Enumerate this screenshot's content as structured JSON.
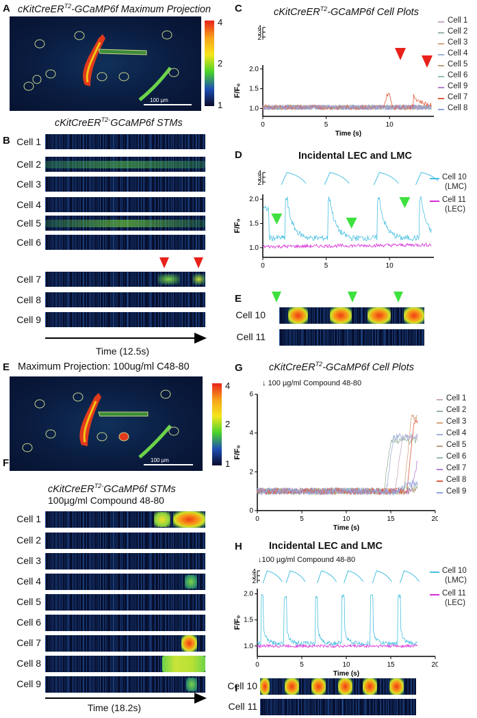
{
  "panelA": {
    "letter": "A",
    "title_pre": "cKitCreER",
    "title_sup": "T2",
    "title_post": "-GCaMP6f Maximum Projection",
    "scale": "100 µm",
    "cbar_ticks": [
      "4",
      "2",
      "1"
    ],
    "rois": [
      "1",
      "2",
      "3",
      "4",
      "5",
      "6",
      "7",
      "8",
      "9",
      "10",
      "11"
    ]
  },
  "panelB": {
    "letter": "B",
    "title_pre": "cKitCreER",
    "title_sup": "T2-",
    "title_post": "GCaMP6f STMs",
    "cells": [
      "Cell 1",
      "Cell 2",
      "Cell 3",
      "Cell 4",
      "Cell 5",
      "Cell 6",
      "Cell 7",
      "Cell 8",
      "Cell 9"
    ],
    "time": "Time (12.5s)"
  },
  "panelC": {
    "letter": "C",
    "title_pre": "cKitCreER",
    "title_sup": "T2",
    "title_post": "-GCaMP6f Cell Plots",
    "chart_data": {
      "type": "line",
      "xlabel": "Time (s)",
      "ylabel": "F/F0",
      "xlim": [
        0,
        13.5
      ],
      "ylim": [
        0.8,
        2.1
      ],
      "xticks": [
        "0",
        "5",
        "10"
      ],
      "yticks": [
        "1.0",
        "1.5",
        "2.0"
      ],
      "stack_ticks": [
        "4",
        "3",
        "2"
      ],
      "legend": [
        "Cell 1",
        "Cell 2",
        "Cell 3",
        "Cell 4",
        "Cell 5",
        "Cell 6",
        "Cell 9",
        "Cell 7",
        "Cell 8"
      ]
    }
  },
  "panelD": {
    "letter": "D",
    "title": "Incidental LEC and LMC",
    "chart_data": {
      "type": "line",
      "xlabel": "",
      "ylabel": "F/F0",
      "xlim": [
        0,
        13.5
      ],
      "ylim": [
        0.8,
        2.1
      ],
      "xticks": [
        "0",
        "5",
        "10"
      ],
      "yticks": [
        "1.0",
        "1.5",
        "2.0"
      ],
      "stack_ticks": [
        "4",
        "3",
        "2"
      ],
      "series": [
        {
          "name": "Cell 10 (LMC)",
          "name1": "Cell 10",
          "name2": "(LMC)",
          "color": "#46bfe0",
          "peaks_s": [
            1.9,
            5.3,
            9.2,
            12.5
          ]
        },
        {
          "name": "Cell 11 (LEC)",
          "name1": "Cell 11",
          "name2": "(LEC)",
          "color": "#d62ad6"
        }
      ]
    }
  },
  "panelE": {
    "letter": "E",
    "cells": [
      "Cell 10",
      "Cell 11"
    ]
  },
  "panelE2": {
    "letter": "E",
    "title": "Maximum Projection: 100ug/ml C48-80",
    "scale": "100 µm",
    "cbar_ticks": [
      "4",
      "2",
      "1"
    ]
  },
  "panelF": {
    "letter": "F",
    "title_pre": "cKitCreER",
    "title_sup": "T2-",
    "title_post": "GCaMP6f STMs",
    "subtitle": "100µg/ml Compound 48-80",
    "cells": [
      "Cell 1",
      "Cell 2",
      "Cell 3",
      "Cell 4",
      "Cell 5",
      "Cell 6",
      "Cell 7",
      "Cell 8",
      "Cell 9"
    ],
    "time": "Time (18.2s)"
  },
  "panelG": {
    "letter": "G",
    "title_pre": "cKitCreER",
    "title_sup": "T2",
    "title_post": "-GCaMP6f Cell Plots",
    "annotation": "100 µg/ml Compound 48-80",
    "chart_data": {
      "type": "line",
      "xlabel": "Time (s)",
      "ylabel": "F/F0",
      "xlim": [
        0,
        20
      ],
      "ylim": [
        0,
        6
      ],
      "xticks": [
        "0",
        "5",
        "10",
        "15",
        "20"
      ],
      "yticks": [
        "0",
        "2",
        "4",
        "6"
      ],
      "legend": [
        "Cell 1",
        "Cell 2",
        "Cell 3",
        "Cell 4",
        "Cell 5",
        "Cell 6",
        "Cell 7",
        "Cell 8",
        "Cell 9"
      ]
    }
  },
  "panelH": {
    "letter": "H",
    "title": "Incidental LEC and LMC",
    "annotation": "100 µg/ml Compound 48-80",
    "chart_data": {
      "type": "line",
      "xlabel": "Time (s)",
      "ylabel": "F/F0",
      "xlim": [
        0,
        20
      ],
      "ylim": [
        0.8,
        2.1
      ],
      "xticks": [
        "0",
        "5",
        "10",
        "15",
        "20"
      ],
      "yticks": [
        "1.0",
        "1.5",
        "2.0"
      ],
      "stack_ticks": [
        "4",
        "3",
        "2"
      ],
      "series": [
        {
          "name": "Cell 10 (LMC)",
          "name1": "Cell 10",
          "name2": "(LMC)",
          "color": "#46bfe0"
        },
        {
          "name": "Cell 11 (LEC)",
          "name1": "Cell 11",
          "name2": "(LEC)",
          "color": "#d62ad6"
        }
      ]
    }
  },
  "panelI": {
    "letter": "I",
    "cells": [
      "Cell 10",
      "Cell 11"
    ]
  }
}
